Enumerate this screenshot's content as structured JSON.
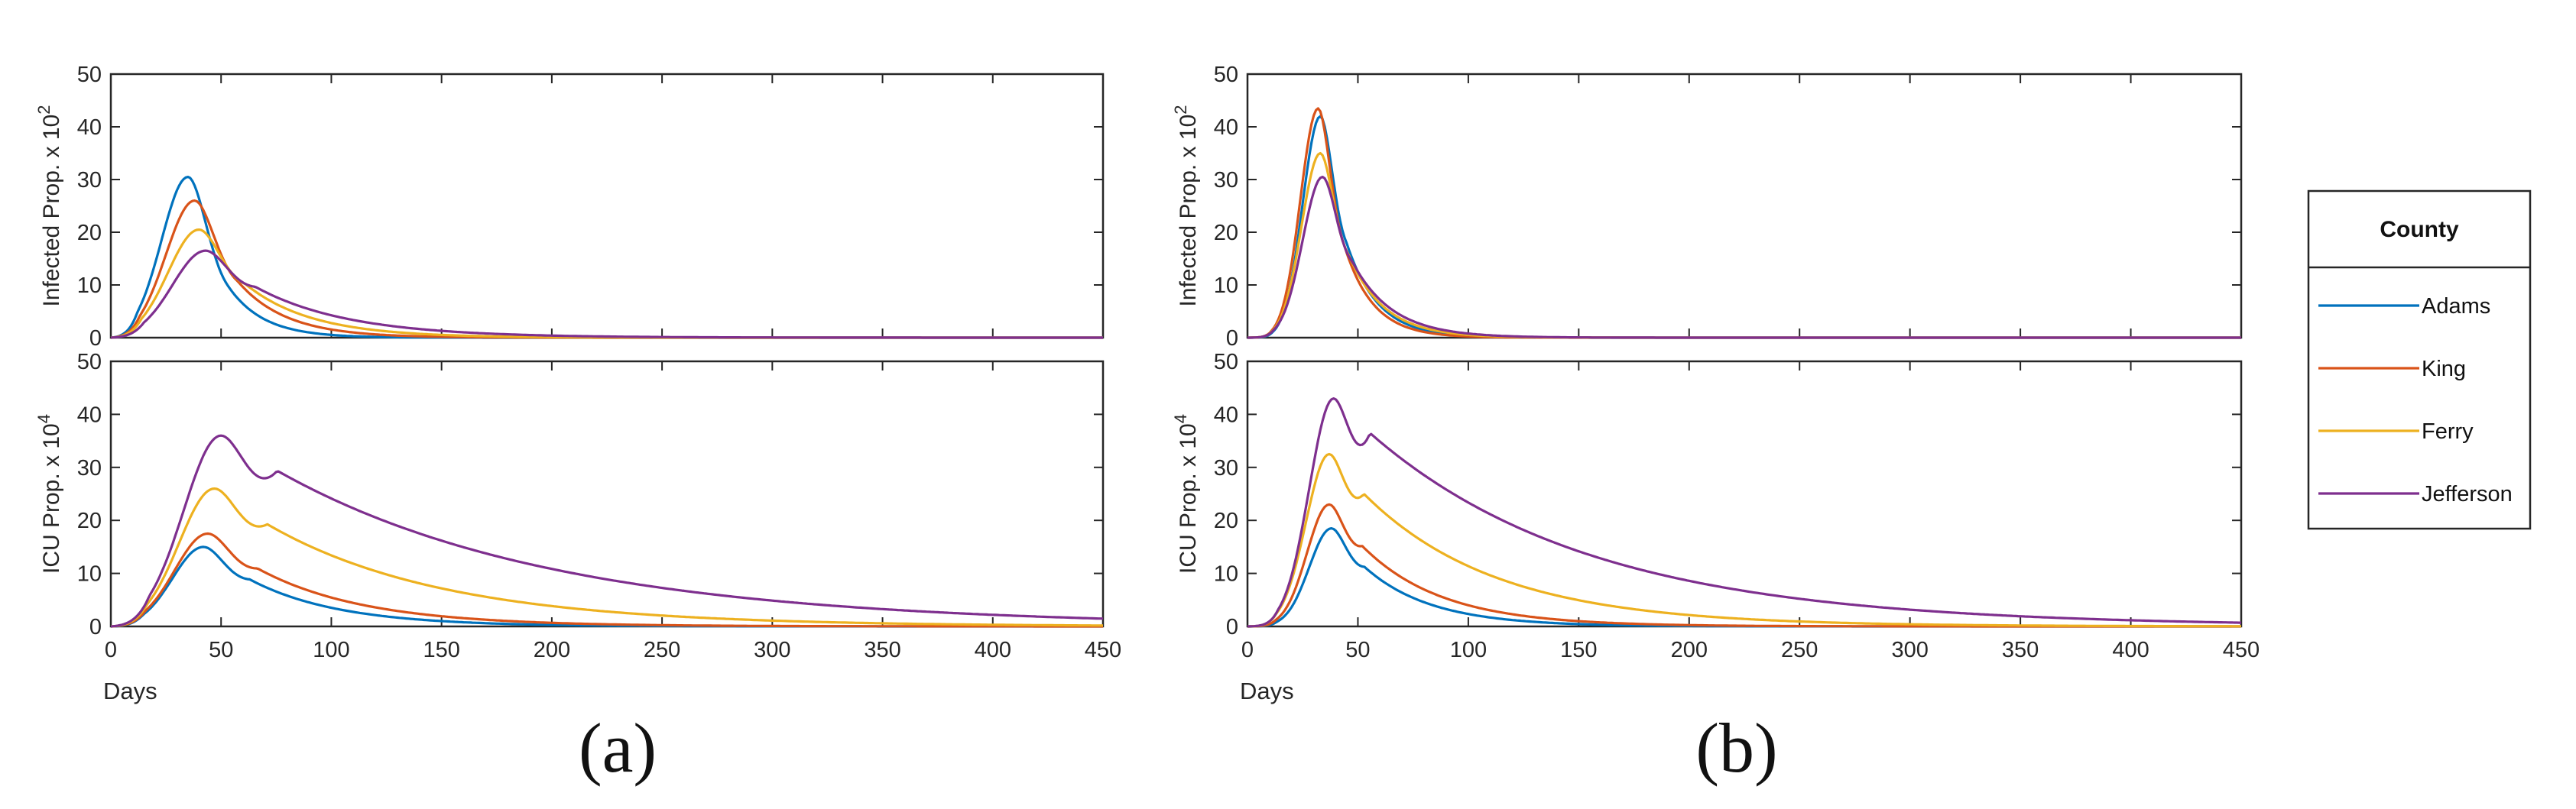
{
  "legend": {
    "title": "County",
    "entries": [
      {
        "name": "Adams",
        "color": "#0072BD"
      },
      {
        "name": "King",
        "color": "#D95319"
      },
      {
        "name": "Ferry",
        "color": "#EDB120"
      },
      {
        "name": "Jefferson",
        "color": "#7E2F8E"
      }
    ]
  },
  "captions": [
    "(a)",
    "(b)"
  ],
  "chart_data": [
    {
      "type": "line",
      "panel": "a-top",
      "ylabel_main": "Infected Prop. x 10",
      "ylabel_exp": "2",
      "xlabel": "",
      "xlim": [
        0,
        450
      ],
      "ylim": [
        0,
        50
      ],
      "yticks": [
        "0",
        "10",
        "20",
        "30",
        "40",
        "50"
      ],
      "series": [
        {
          "name": "Adams",
          "peak_day": 35,
          "peak": 30.5,
          "rise": 12,
          "decay": 16
        },
        {
          "name": "King",
          "peak_day": 38,
          "peak": 26,
          "rise": 13,
          "decay": 22
        },
        {
          "name": "Ferry",
          "peak_day": 40,
          "peak": 20.5,
          "rise": 14,
          "decay": 30
        },
        {
          "name": "Jefferson",
          "peak_day": 43,
          "peak": 16.5,
          "rise": 15,
          "decay": 42
        }
      ]
    },
    {
      "type": "line",
      "panel": "a-bottom",
      "ylabel_main": "ICU Prop. x 10",
      "ylabel_exp": "4",
      "xlabel": "Days",
      "xlim": [
        0,
        450
      ],
      "ylim": [
        0,
        50
      ],
      "xticks": [
        "0",
        "50",
        "100",
        "150",
        "200",
        "250",
        "300",
        "350",
        "400",
        "450"
      ],
      "yticks": [
        "0",
        "10",
        "20",
        "30",
        "40",
        "50"
      ],
      "series": [
        {
          "name": "Adams",
          "peak_day": 42,
          "peak": 15,
          "rise": 14,
          "decay": 40
        },
        {
          "name": "King",
          "peak_day": 44,
          "peak": 17.5,
          "rise": 15,
          "decay": 48
        },
        {
          "name": "Ferry",
          "peak_day": 47,
          "peak": 26,
          "rise": 16,
          "decay": 80
        },
        {
          "name": "Jefferson",
          "peak_day": 50,
          "peak": 36,
          "rise": 17,
          "decay": 125
        }
      ]
    },
    {
      "type": "line",
      "panel": "b-top",
      "ylabel_main": "Infected Prop. x 10",
      "ylabel_exp": "2",
      "xlabel": "",
      "xlim": [
        0,
        450
      ],
      "ylim": [
        0,
        50
      ],
      "yticks": [
        "0",
        "10",
        "20",
        "30",
        "40",
        "50"
      ],
      "series": [
        {
          "name": "Adams",
          "peak_day": 33,
          "peak": 42,
          "rise": 8,
          "decay": 14
        },
        {
          "name": "King",
          "peak_day": 32,
          "peak": 43.5,
          "rise": 8,
          "decay": 13
        },
        {
          "name": "Ferry",
          "peak_day": 33,
          "peak": 35,
          "rise": 8.5,
          "decay": 16
        },
        {
          "name": "Jefferson",
          "peak_day": 34,
          "peak": 30.5,
          "rise": 9,
          "decay": 18
        }
      ]
    },
    {
      "type": "line",
      "panel": "b-bottom",
      "ylabel_main": "ICU Prop. x 10",
      "ylabel_exp": "4",
      "xlabel": "Days",
      "xlim": [
        0,
        450
      ],
      "ylim": [
        0,
        50
      ],
      "xticks": [
        "0",
        "50",
        "100",
        "150",
        "200",
        "250",
        "300",
        "350",
        "400",
        "450"
      ],
      "yticks": [
        "0",
        "10",
        "20",
        "30",
        "40",
        "50"
      ],
      "series": [
        {
          "name": "Adams",
          "peak_day": 38,
          "peak": 18.5,
          "rise": 10,
          "decay": 30
        },
        {
          "name": "King",
          "peak_day": 37,
          "peak": 23,
          "rise": 10,
          "decay": 36
        },
        {
          "name": "Ferry",
          "peak_day": 37,
          "peak": 32.5,
          "rise": 10.5,
          "decay": 60
        },
        {
          "name": "Jefferson",
          "peak_day": 39,
          "peak": 43,
          "rise": 11,
          "decay": 100
        }
      ]
    }
  ]
}
